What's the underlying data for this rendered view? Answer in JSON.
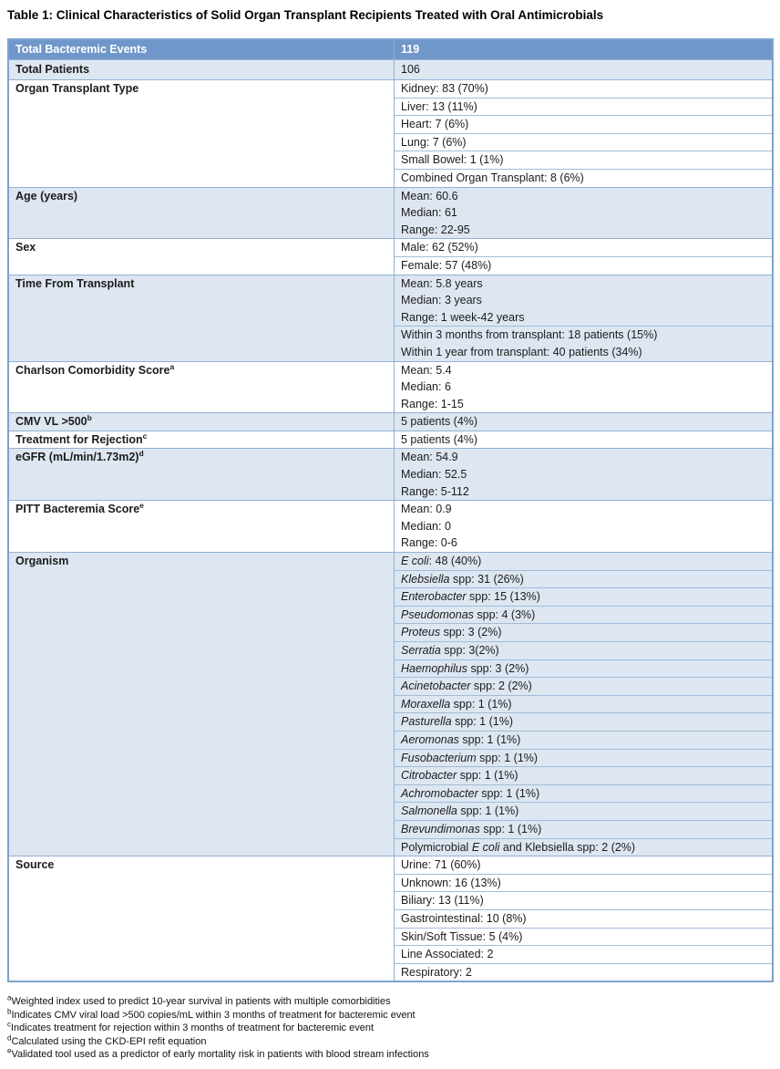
{
  "title": "Table 1: Clinical Characteristics of Solid Organ Transplant Recipients Treated with Oral Antimicrobials",
  "colors": {
    "header_bg": "#7097c9",
    "header_text": "#ffffff",
    "band_light": "#dde6f1",
    "band_white": "#ffffff",
    "border_outer": "#7da3cf",
    "border_section": "#92b0d4",
    "border_subrow": "#a3bcda",
    "text": "#1c1c1c"
  },
  "table": {
    "header": {
      "label": "Total Bacteremic Events",
      "value": "119"
    },
    "sections": [
      {
        "label": "Total Patients",
        "sup": "",
        "shade": "light",
        "cells": [
          [
            [
              {
                "t": "106"
              }
            ]
          ]
        ]
      },
      {
        "label": "Organ Transplant Type",
        "sup": "",
        "shade": "white",
        "cells": [
          [
            [
              {
                "t": "Kidney: 83 (70%)"
              }
            ]
          ],
          [
            [
              {
                "t": "Liver: 13 (11%)"
              }
            ]
          ],
          [
            [
              {
                "t": "Heart: 7 (6%)"
              }
            ]
          ],
          [
            [
              {
                "t": "Lung: 7 (6%)"
              }
            ]
          ],
          [
            [
              {
                "t": "Small Bowel: 1 (1%)"
              }
            ]
          ],
          [
            [
              {
                "t": "Combined Organ Transplant: 8 (6%)"
              }
            ]
          ]
        ]
      },
      {
        "label": "Age (years)",
        "sup": "",
        "shade": "light",
        "cells": [
          [
            [
              {
                "t": "Mean: 60.6"
              }
            ],
            [
              {
                "t": "Median: 61"
              }
            ],
            [
              {
                "t": "Range: 22-95"
              }
            ]
          ]
        ]
      },
      {
        "label": "Sex",
        "sup": "",
        "shade": "white",
        "cells": [
          [
            [
              {
                "t": "Male: 62 (52%)"
              }
            ]
          ],
          [
            [
              {
                "t": "Female: 57 (48%)"
              }
            ]
          ]
        ]
      },
      {
        "label": "Time From Transplant",
        "sup": "",
        "shade": "light",
        "cells": [
          [
            [
              {
                "t": "Mean: 5.8 years"
              }
            ],
            [
              {
                "t": "Median: 3 years"
              }
            ],
            [
              {
                "t": "Range: 1 week-42 years"
              }
            ]
          ],
          [
            [
              {
                "t": "Within 3 months from transplant: 18 patients (15%)"
              }
            ],
            [
              {
                "t": "Within 1 year from transplant: 40 patients (34%)"
              }
            ]
          ]
        ]
      },
      {
        "label": "Charlson Comorbidity Score",
        "sup": "a",
        "shade": "white",
        "cells": [
          [
            [
              {
                "t": "Mean: 5.4"
              }
            ],
            [
              {
                "t": "Median: 6"
              }
            ],
            [
              {
                "t": "Range: 1-15"
              }
            ]
          ]
        ]
      },
      {
        "label": "CMV VL >500",
        "sup": "b",
        "shade": "light",
        "cells": [
          [
            [
              {
                "t": "5 patients (4%)"
              }
            ]
          ]
        ]
      },
      {
        "label": "Treatment for Rejection",
        "sup": "c",
        "shade": "white",
        "cells": [
          [
            [
              {
                "t": "5 patients (4%)"
              }
            ]
          ]
        ]
      },
      {
        "label": "eGFR (mL/min/1.73m2)",
        "sup": "d",
        "shade": "light",
        "cells": [
          [
            [
              {
                "t": "Mean: 54.9"
              }
            ],
            [
              {
                "t": "Median: 52.5"
              }
            ],
            [
              {
                "t": "Range: 5-112"
              }
            ]
          ]
        ]
      },
      {
        "label": "PITT Bacteremia Score",
        "sup": "e",
        "shade": "white",
        "cells": [
          [
            [
              {
                "t": "Mean: 0.9"
              }
            ],
            [
              {
                "t": "Median: 0"
              }
            ],
            [
              {
                "t": "Range: 0-6"
              }
            ]
          ]
        ]
      },
      {
        "label": "Organism",
        "sup": "",
        "shade": "light",
        "cells": [
          [
            [
              {
                "t": "E coli",
                "i": true
              },
              {
                "t": ": 48 (40%)"
              }
            ]
          ],
          [
            [
              {
                "t": "Klebsiella",
                "i": true
              },
              {
                "t": " spp: 31 (26%)"
              }
            ]
          ],
          [
            [
              {
                "t": "Enterobacter",
                "i": true
              },
              {
                "t": " spp: 15 (13%)"
              }
            ]
          ],
          [
            [
              {
                "t": "Pseudomonas",
                "i": true
              },
              {
                "t": " spp: 4 (3%)"
              }
            ]
          ],
          [
            [
              {
                "t": "Proteus",
                "i": true
              },
              {
                "t": " spp: 3 (2%)"
              }
            ]
          ],
          [
            [
              {
                "t": "Serratia",
                "i": true
              },
              {
                "t": " spp: 3(2%)"
              }
            ]
          ],
          [
            [
              {
                "t": "Haemophilus",
                "i": true
              },
              {
                "t": " spp: 3 (2%)"
              }
            ]
          ],
          [
            [
              {
                "t": "Acinetobacter",
                "i": true
              },
              {
                "t": " spp: 2 (2%)"
              }
            ]
          ],
          [
            [
              {
                "t": "Moraxella",
                "i": true
              },
              {
                "t": " spp: 1 (1%)"
              }
            ]
          ],
          [
            [
              {
                "t": "Pasturella",
                "i": true
              },
              {
                "t": " spp: 1 (1%)"
              }
            ]
          ],
          [
            [
              {
                "t": "Aeromonas",
                "i": true
              },
              {
                "t": " spp: 1 (1%)"
              }
            ]
          ],
          [
            [
              {
                "t": "Fusobacterium",
                "i": true
              },
              {
                "t": " spp: 1 (1%)"
              }
            ]
          ],
          [
            [
              {
                "t": "Citrobacter",
                "i": true
              },
              {
                "t": " spp: 1 (1%)"
              }
            ]
          ],
          [
            [
              {
                "t": "Achromobacter",
                "i": true
              },
              {
                "t": " spp: 1 (1%)"
              }
            ]
          ],
          [
            [
              {
                "t": "Salmonella",
                "i": true
              },
              {
                "t": " spp: 1 (1%)"
              }
            ]
          ],
          [
            [
              {
                "t": "Brevundimonas",
                "i": true
              },
              {
                "t": " spp: 1 (1%)"
              }
            ]
          ],
          [
            [
              {
                "t": "Polymicrobial "
              },
              {
                "t": "E coli",
                "i": true
              },
              {
                "t": " and Klebsiella spp: 2 (2%)"
              }
            ]
          ]
        ]
      },
      {
        "label": "Source",
        "sup": "",
        "shade": "white",
        "cells": [
          [
            [
              {
                "t": "Urine: 71 (60%)"
              }
            ]
          ],
          [
            [
              {
                "t": "Unknown: 16 (13%)"
              }
            ]
          ],
          [
            [
              {
                "t": "Biliary: 13 (11%)"
              }
            ]
          ],
          [
            [
              {
                "t": "Gastrointestinal: 10 (8%)"
              }
            ]
          ],
          [
            [
              {
                "t": "Skin/Soft Tissue: 5 (4%)"
              }
            ]
          ],
          [
            [
              {
                "t": "Line Associated: 2"
              }
            ]
          ],
          [
            [
              {
                "t": "Respiratory: 2"
              }
            ]
          ]
        ]
      }
    ]
  },
  "footnotes": [
    {
      "sup": "a",
      "text": "Weighted index used to predict 10-year survival in patients with multiple comorbidities"
    },
    {
      "sup": "b",
      "text": "Indicates CMV viral load >500 copies/mL within 3 months of treatment for bacteremic event"
    },
    {
      "sup": "c",
      "text": "Indicates treatment for rejection within 3 months of treatment for bacteremic event"
    },
    {
      "sup": "d",
      "text": "Calculated using the CKD-EPI refit equation"
    },
    {
      "sup": "e",
      "text": "Validated tool used as a predictor of early mortality risk in patients with blood stream infections"
    }
  ]
}
